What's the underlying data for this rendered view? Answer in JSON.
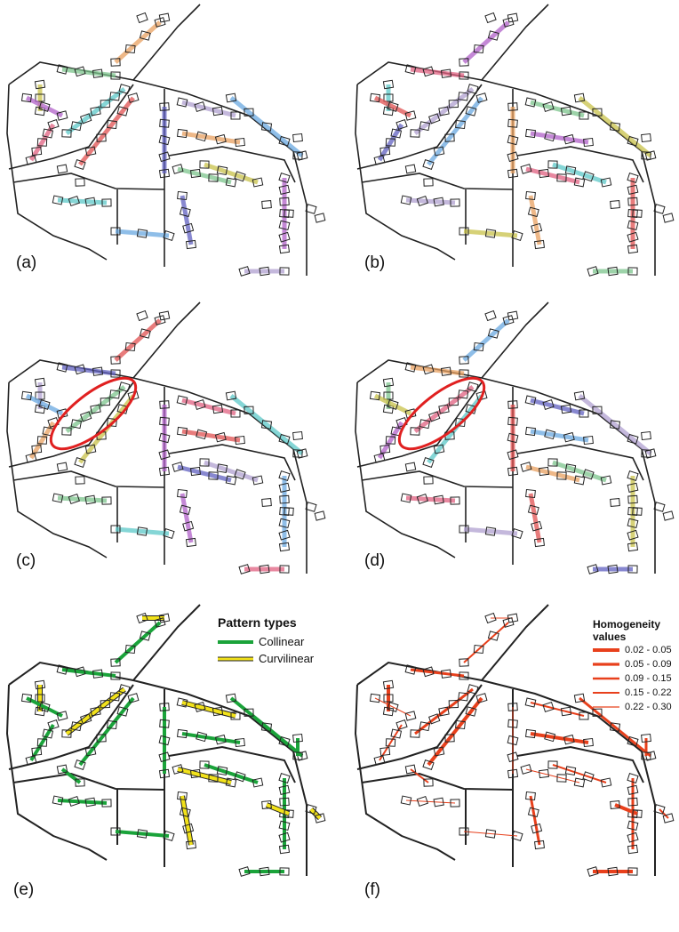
{
  "panels": [
    {
      "label": "(a)"
    },
    {
      "label": "(b)"
    },
    {
      "label": "(c)"
    },
    {
      "label": "(d)"
    },
    {
      "label": "(e)"
    },
    {
      "label": "(f)"
    }
  ],
  "legend_e": {
    "title": "Pattern types",
    "items": [
      "Collinear",
      "Curvilinear"
    ]
  },
  "legend_f": {
    "title": "Homogeneity values",
    "items": [
      "0.02 - 0.05",
      "0.05 - 0.09",
      "0.09 - 0.15",
      "0.15 - 0.22",
      "0.22 - 0.30"
    ]
  }
}
